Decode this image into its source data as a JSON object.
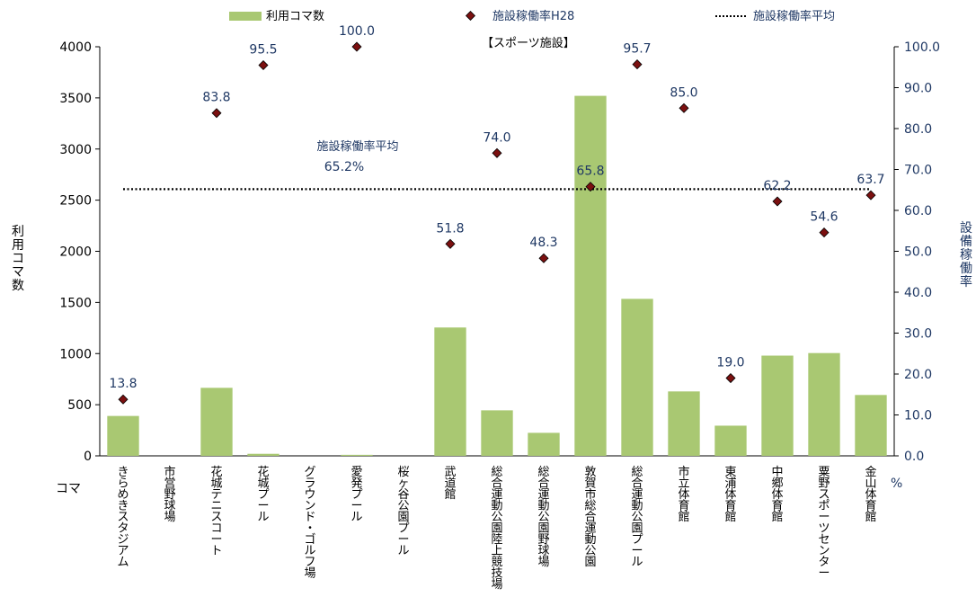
{
  "chart_data": {
    "type": "bar+scatter",
    "title": "【スポーツ施設】",
    "categories": [
      "きらめきスタジアム",
      "市営野球場",
      "花城テニスコート",
      "花城プール",
      "グラウンド・ゴルフ場",
      "愛発プール",
      "桜ヶ谷公園プール",
      "武道館",
      "総合運動公園陸上競技場",
      "総合運動公園野球場",
      "敦賀市総合運動公園",
      "総合運動公園プール",
      "市立体育館",
      "東浦体育館",
      "中郷体育館",
      "粟野スポーツセンター",
      "金山体育館"
    ],
    "series": [
      {
        "name": "利用コマ数",
        "type": "bar",
        "axis": "left",
        "color": "#a9c872",
        "values": [
          390,
          0,
          665,
          20,
          0,
          10,
          0,
          1255,
          445,
          225,
          3520,
          1535,
          630,
          295,
          980,
          1005,
          595
        ]
      },
      {
        "name": "施設稼働率H28",
        "type": "scatter",
        "axis": "right",
        "color": "#7b1010",
        "values": [
          13.8,
          null,
          83.8,
          95.5,
          null,
          100.0,
          null,
          51.8,
          74.0,
          48.3,
          65.8,
          95.7,
          85.0,
          19.0,
          62.2,
          54.6,
          63.7
        ],
        "labels": [
          "13.8",
          "",
          "83.8",
          "95.5",
          "",
          "100.0",
          "",
          "51.8",
          "74.0",
          "48.3",
          "65.8",
          "95.7",
          "85.0",
          "19.0",
          "62.2",
          "54.6",
          "63.7"
        ]
      },
      {
        "name": "施設稼働率平均",
        "type": "reference-line",
        "axis": "right",
        "color": "#000000",
        "value": 65.2
      }
    ],
    "average_annotation": {
      "label": "施設稼働率平均",
      "value_text": "65.2%"
    },
    "y_left": {
      "label": "利用コマ数",
      "unit": "コマ",
      "ylim": [
        0,
        4000
      ],
      "ticks": [
        "0",
        "500",
        "1000",
        "1500",
        "2000",
        "2500",
        "3000",
        "3500",
        "4000"
      ]
    },
    "y_right": {
      "label": "設備稼働率",
      "unit": "%",
      "ylim": [
        0,
        100
      ],
      "ticks": [
        "0.0",
        "10.0",
        "20.0",
        "30.0",
        "40.0",
        "50.0",
        "60.0",
        "70.0",
        "80.0",
        "90.0",
        "100.0"
      ]
    },
    "legend_position": "top",
    "grid": false
  }
}
